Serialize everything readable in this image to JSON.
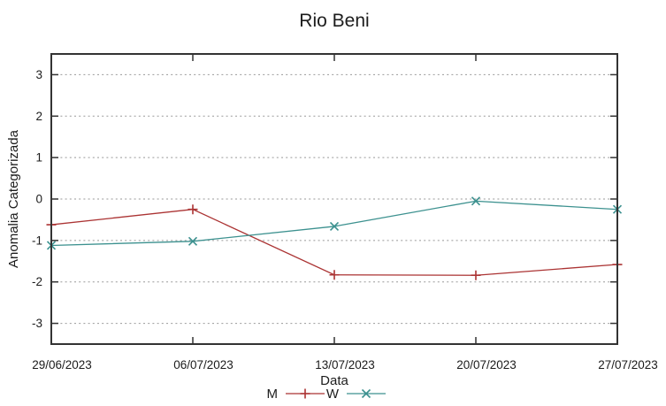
{
  "chart_data": {
    "type": "line",
    "title": "Rio Beni",
    "xlabel": "Data",
    "ylabel": "Anomalia Categorizada",
    "categories": [
      "29/06/2023",
      "06/07/2023",
      "13/07/2023",
      "20/07/2023",
      "27/07/2023"
    ],
    "series": [
      {
        "name": "M",
        "color": "#ab3333",
        "marker": "plus",
        "values": [
          -0.62,
          -0.25,
          -1.83,
          -1.84,
          -1.58
        ]
      },
      {
        "name": "W",
        "color": "#3c918f",
        "marker": "cross",
        "values": [
          -1.12,
          -1.02,
          -0.66,
          -0.05,
          -0.25
        ]
      }
    ],
    "ylim": [
      -3.5,
      3.5
    ],
    "yticks": [
      -3,
      -2,
      -1,
      0,
      1,
      2,
      3
    ],
    "grid": true,
    "grid_style": "dotted",
    "legend_position": "bottom-center",
    "colors": {
      "background": "#ffffff",
      "text": "#1c1c1c",
      "grid": "#999999",
      "border": "#333333"
    }
  }
}
